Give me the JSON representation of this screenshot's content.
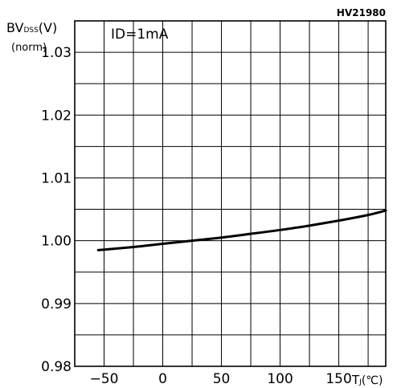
{
  "chart_data": {
    "type": "line",
    "chart_id": "HV21980",
    "annotation": "ID=1mA",
    "ylabel_main": "BV",
    "ylabel_sub": "DSS",
    "ylabel_unit": "(V)",
    "ylabel_norm": "(norm)",
    "xlabel_main": "T",
    "xlabel_sub": "J",
    "xlabel_unit": "(℃)",
    "xlim": [
      -75,
      190
    ],
    "ylim": [
      0.98,
      1.035
    ],
    "grid": true,
    "x_ticks": [
      -50,
      0,
      50,
      100,
      150
    ],
    "x_tick_labels": [
      "−50",
      "0",
      "50",
      "100",
      "150"
    ],
    "y_ticks": [
      0.98,
      0.99,
      1.0,
      1.01,
      1.02,
      1.03
    ],
    "y_tick_labels": [
      "0.98",
      "0.99",
      "1.00",
      "1.01",
      "1.02",
      "1.03"
    ],
    "series": [
      {
        "x": [
          -55,
          -25,
          0,
          25,
          50,
          75,
          100,
          125,
          150,
          175,
          190
        ],
        "y": [
          0.9985,
          0.999,
          0.9995,
          1.0,
          1.0005,
          1.0011,
          1.0017,
          1.0024,
          1.0032,
          1.0041,
          1.0048
        ]
      }
    ]
  }
}
